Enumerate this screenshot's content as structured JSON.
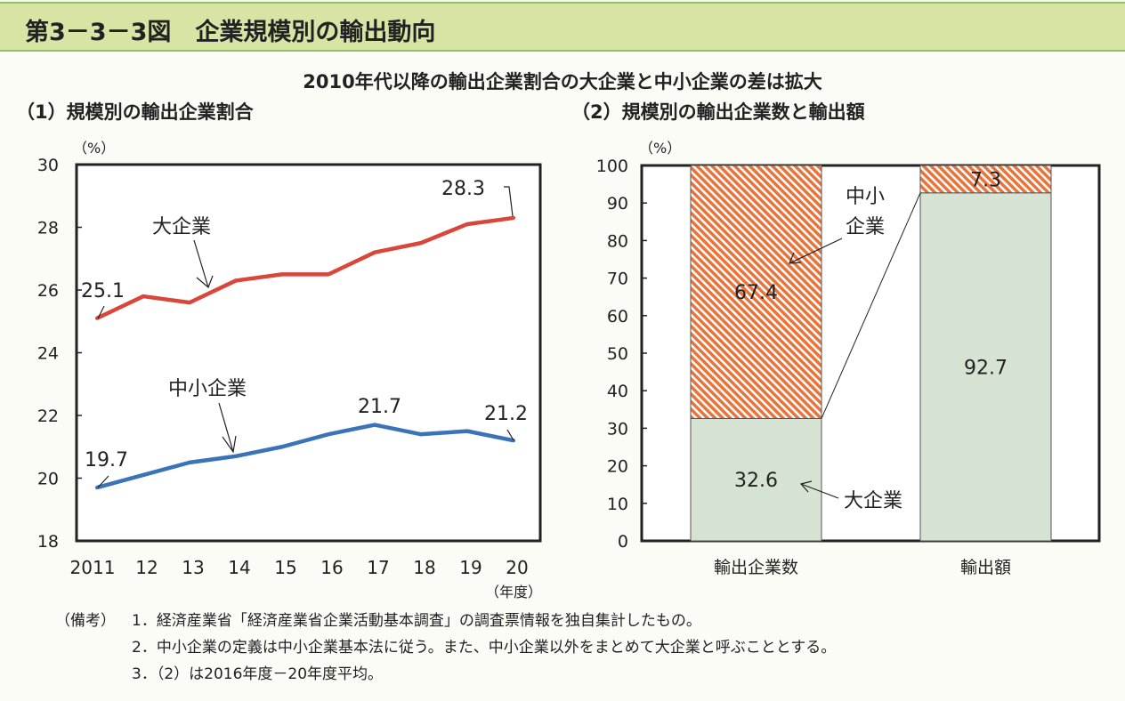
{
  "header": {
    "title": "第3－3－3図　企業規模別の輸出動向"
  },
  "subtitle": "2010年代以降の輸出企業割合の大企業と中小企業の差は拡大",
  "chart_data": [
    {
      "type": "line",
      "title": "（1）規模別の輸出企業割合",
      "ylabel": "（%）",
      "xlabel": "（年度）",
      "ylim": [
        18,
        30
      ],
      "yticks": [
        "18",
        "20",
        "22",
        "24",
        "26",
        "28",
        "30"
      ],
      "categories": [
        "2011",
        "12",
        "13",
        "14",
        "15",
        "16",
        "17",
        "18",
        "19",
        "20"
      ],
      "series": [
        {
          "name": "大企業",
          "color": "#d9463a",
          "values": [
            25.1,
            25.8,
            25.6,
            26.3,
            26.5,
            26.5,
            27.2,
            27.5,
            28.1,
            28.3
          ],
          "labels": [
            "25.1",
            "28.3"
          ]
        },
        {
          "name": "中小企業",
          "color": "#3a73b8",
          "values": [
            19.7,
            20.1,
            20.5,
            20.7,
            21.0,
            21.4,
            21.7,
            21.4,
            21.5,
            21.2
          ],
          "labels": [
            "19.7",
            "21.7",
            "21.2"
          ]
        }
      ]
    },
    {
      "type": "bar",
      "stacked": true,
      "title": "（2）規模別の輸出企業数と輸出額",
      "ylabel": "（%）",
      "ylim": [
        0,
        100
      ],
      "yticks": [
        "0",
        "10",
        "20",
        "30",
        "40",
        "50",
        "60",
        "70",
        "80",
        "90",
        "100"
      ],
      "categories": [
        "輸出企業数",
        "輸出額"
      ],
      "series": [
        {
          "name": "大企業",
          "color": "#d6e3d3",
          "values": [
            32.6,
            92.7
          ],
          "labels": [
            "32.6",
            "92.7"
          ]
        },
        {
          "name": "中小企業",
          "color": "#e8743c",
          "values": [
            67.4,
            7.3
          ],
          "labels": [
            "67.4",
            "7.3"
          ]
        }
      ],
      "annotations": [
        "中小",
        "企業",
        "大企業"
      ]
    }
  ],
  "notes": {
    "label": "（備考）",
    "items": [
      "1．経済産業省「経済産業省企業活動基本調査」の調査票情報を独自集計したもの。",
      "2．中小企業の定義は中小企業基本法に従う。また、中小企業以外をまとめて大企業と呼ぶこととする。",
      "3．（2）は2016年度－20年度平均。"
    ]
  }
}
